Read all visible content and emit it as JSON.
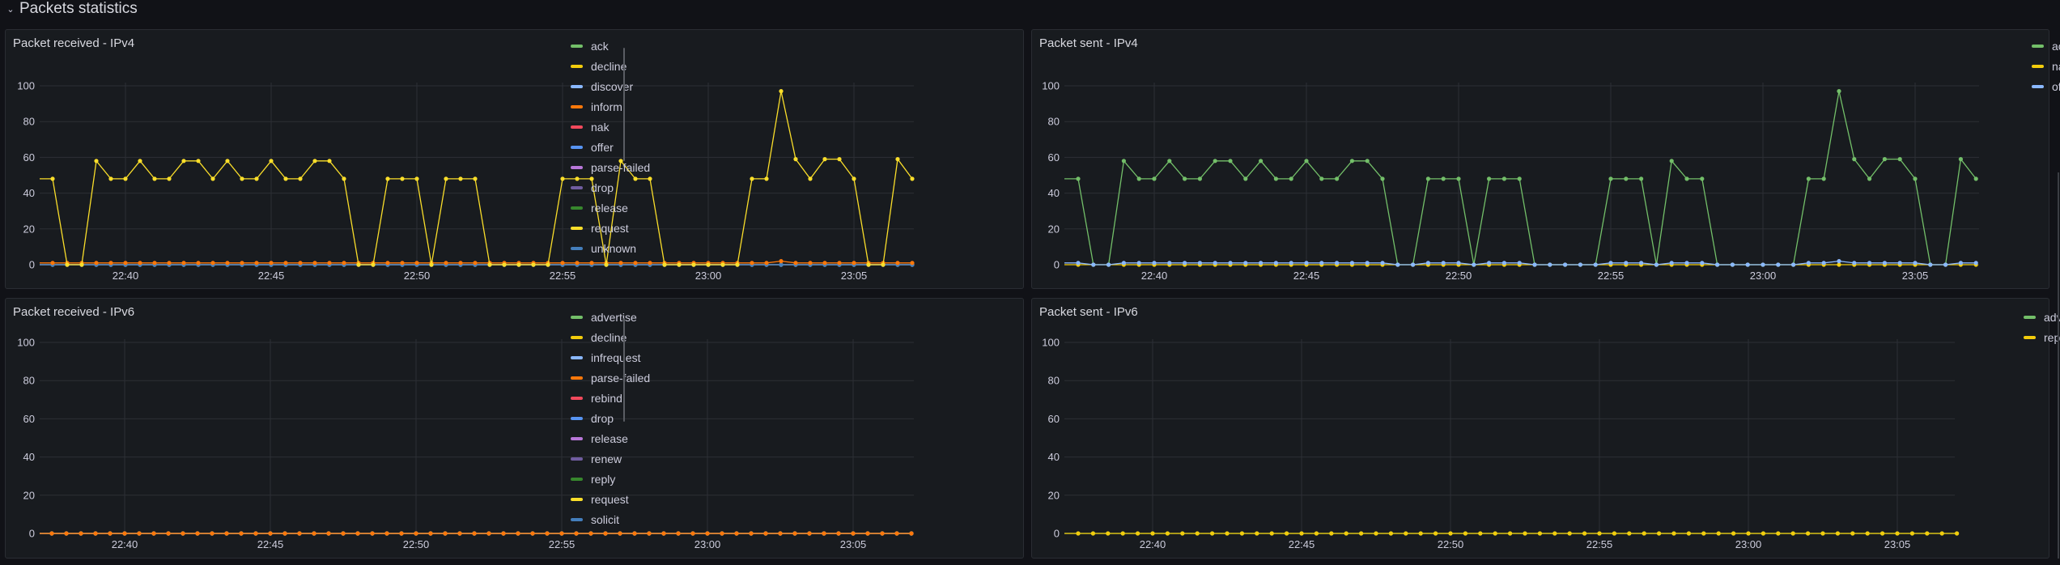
{
  "row": {
    "title": "Packets statistics",
    "chevron_icon": "chevron-down-icon"
  },
  "colors": {
    "green": "#73bf69",
    "yellow": "#fade2a",
    "light_blue": "#8ab8ff",
    "orange": "#ff780a",
    "red": "#f2495c",
    "blue": "#5794f2",
    "purple": "#b877d9",
    "dark_purple": "#705da0",
    "dark_green": "#37872d",
    "dark_yellow": "#fade2a",
    "steel_blue": "#447ebc"
  },
  "chart_data": [
    {
      "id": "received-ipv4",
      "type": "line",
      "title": "Packet received - IPv4",
      "ylim": [
        0,
        100
      ],
      "yticks": [
        "0",
        "20",
        "40",
        "60",
        "80",
        "100"
      ],
      "xticks": [
        "22:40",
        "22:45",
        "22:50",
        "22:55",
        "23:00",
        "23:05"
      ],
      "x_start": "22:37:30",
      "x_step_seconds": 30,
      "points": 60,
      "grid": true,
      "legend_placement": "right",
      "series": [
        {
          "name": "ack",
          "color": "#73bf69",
          "values": "zeros"
        },
        {
          "name": "decline",
          "color": "#f2cc0c",
          "values": "zeros"
        },
        {
          "name": "discover",
          "color": "#8ab8ff",
          "values": "zeros"
        },
        {
          "name": "inform",
          "color": "#ff780a",
          "values": [
            1,
            1,
            1,
            1,
            1,
            1,
            1,
            1,
            1,
            1,
            1,
            1,
            1,
            1,
            1,
            1,
            1,
            1,
            1,
            1,
            1,
            1,
            1,
            1,
            1,
            1,
            1,
            1,
            1,
            1,
            1,
            1,
            1,
            1,
            1,
            1,
            1,
            1,
            1,
            1,
            1,
            1,
            1,
            1,
            1,
            1,
            1,
            1,
            1,
            1,
            2,
            1,
            1,
            1,
            1,
            1,
            1,
            1,
            1,
            1
          ]
        },
        {
          "name": "nak",
          "color": "#f2495c",
          "values": "zeros"
        },
        {
          "name": "offer",
          "color": "#5794f2",
          "values": "zeros"
        },
        {
          "name": "parse-failed",
          "color": "#b877d9",
          "values": "zeros"
        },
        {
          "name": "drop",
          "color": "#705da0",
          "values": "zeros"
        },
        {
          "name": "release",
          "color": "#37872d",
          "values": "zeros"
        },
        {
          "name": "request",
          "color": "#fade2a",
          "values": [
            48,
            0,
            0,
            58,
            48,
            48,
            58,
            48,
            48,
            58,
            58,
            48,
            58,
            48,
            48,
            58,
            48,
            48,
            58,
            58,
            48,
            0,
            0,
            48,
            48,
            48,
            0,
            48,
            48,
            48,
            0,
            0,
            0,
            0,
            0,
            48,
            48,
            48,
            0,
            58,
            48,
            48,
            0,
            0,
            0,
            0,
            0,
            0,
            48,
            48,
            97,
            59,
            48,
            59,
            59,
            48,
            0,
            0,
            59,
            48
          ]
        },
        {
          "name": "unknown",
          "color": "#447ebc",
          "values": "zeros",
          "markers": true
        }
      ]
    },
    {
      "id": "sent-ipv4",
      "type": "line",
      "title": "Packet sent - IPv4",
      "ylim": [
        0,
        100
      ],
      "yticks": [
        "0",
        "20",
        "40",
        "60",
        "80",
        "100"
      ],
      "xticks": [
        "22:40",
        "22:45",
        "22:50",
        "22:55",
        "23:00",
        "23:05"
      ],
      "x_start": "22:37:30",
      "x_step_seconds": 30,
      "points": 60,
      "grid": true,
      "legend_placement": "right",
      "series": [
        {
          "name": "ack",
          "color": "#73bf69",
          "values": [
            48,
            0,
            0,
            58,
            48,
            48,
            58,
            48,
            48,
            58,
            58,
            48,
            58,
            48,
            48,
            58,
            48,
            48,
            58,
            58,
            48,
            0,
            0,
            48,
            48,
            48,
            0,
            48,
            48,
            48,
            0,
            0,
            0,
            0,
            0,
            48,
            48,
            48,
            0,
            58,
            48,
            48,
            0,
            0,
            0,
            0,
            0,
            0,
            48,
            48,
            97,
            59,
            48,
            59,
            59,
            48,
            0,
            0,
            59,
            48
          ]
        },
        {
          "name": "nak",
          "color": "#f2cc0c",
          "values": "zeros",
          "markers": true
        },
        {
          "name": "offer",
          "color": "#8ab8ff",
          "values": [
            1,
            0,
            0,
            1,
            1,
            1,
            1,
            1,
            1,
            1,
            1,
            1,
            1,
            1,
            1,
            1,
            1,
            1,
            1,
            1,
            1,
            0,
            0,
            1,
            1,
            1,
            0,
            1,
            1,
            1,
            0,
            0,
            0,
            0,
            0,
            1,
            1,
            1,
            0,
            1,
            1,
            1,
            0,
            0,
            0,
            0,
            0,
            0,
            1,
            1,
            2,
            1,
            1,
            1,
            1,
            1,
            0,
            0,
            1,
            1
          ],
          "markers": true
        }
      ]
    },
    {
      "id": "received-ipv6",
      "type": "line",
      "title": "Packet received - IPv6",
      "ylim": [
        0,
        100
      ],
      "yticks": [
        "0",
        "20",
        "40",
        "60",
        "80",
        "100"
      ],
      "xticks": [
        "22:40",
        "22:45",
        "22:50",
        "22:55",
        "23:00",
        "23:05"
      ],
      "x_start": "22:37:30",
      "x_step_seconds": 30,
      "points": 60,
      "grid": true,
      "legend_placement": "right",
      "series": [
        {
          "name": "advertise",
          "color": "#73bf69",
          "values": "zeros"
        },
        {
          "name": "decline",
          "color": "#f2cc0c",
          "values": "zeros"
        },
        {
          "name": "infrequest",
          "color": "#8ab8ff",
          "values": "zeros"
        },
        {
          "name": "parse-failed",
          "color": "#ff780a",
          "values": "zeros"
        },
        {
          "name": "rebind",
          "color": "#f2495c",
          "values": "zeros"
        },
        {
          "name": "drop",
          "color": "#5794f2",
          "values": "zeros"
        },
        {
          "name": "release",
          "color": "#b877d9",
          "values": "zeros"
        },
        {
          "name": "renew",
          "color": "#705da0",
          "values": "zeros"
        },
        {
          "name": "reply",
          "color": "#37872d",
          "values": "zeros"
        },
        {
          "name": "request",
          "color": "#fade2a",
          "values": "zeros"
        },
        {
          "name": "solicit",
          "color": "#447ebc",
          "values": "zeros"
        }
      ],
      "visible_top_series": "parse-failed"
    },
    {
      "id": "sent-ipv6",
      "type": "line",
      "title": "Packet sent - IPv6",
      "ylim": [
        0,
        100
      ],
      "yticks": [
        "0",
        "20",
        "40",
        "60",
        "80",
        "100"
      ],
      "xticks": [
        "22:40",
        "22:45",
        "22:50",
        "22:55",
        "23:00",
        "23:05"
      ],
      "x_start": "22:37:30",
      "x_step_seconds": 30,
      "points": 60,
      "grid": true,
      "legend_placement": "right",
      "series": [
        {
          "name": "advertise",
          "color": "#73bf69",
          "values": "zeros"
        },
        {
          "name": "reply",
          "color": "#f2cc0c",
          "values": "zeros"
        }
      ],
      "visible_top_series": "reply"
    }
  ]
}
